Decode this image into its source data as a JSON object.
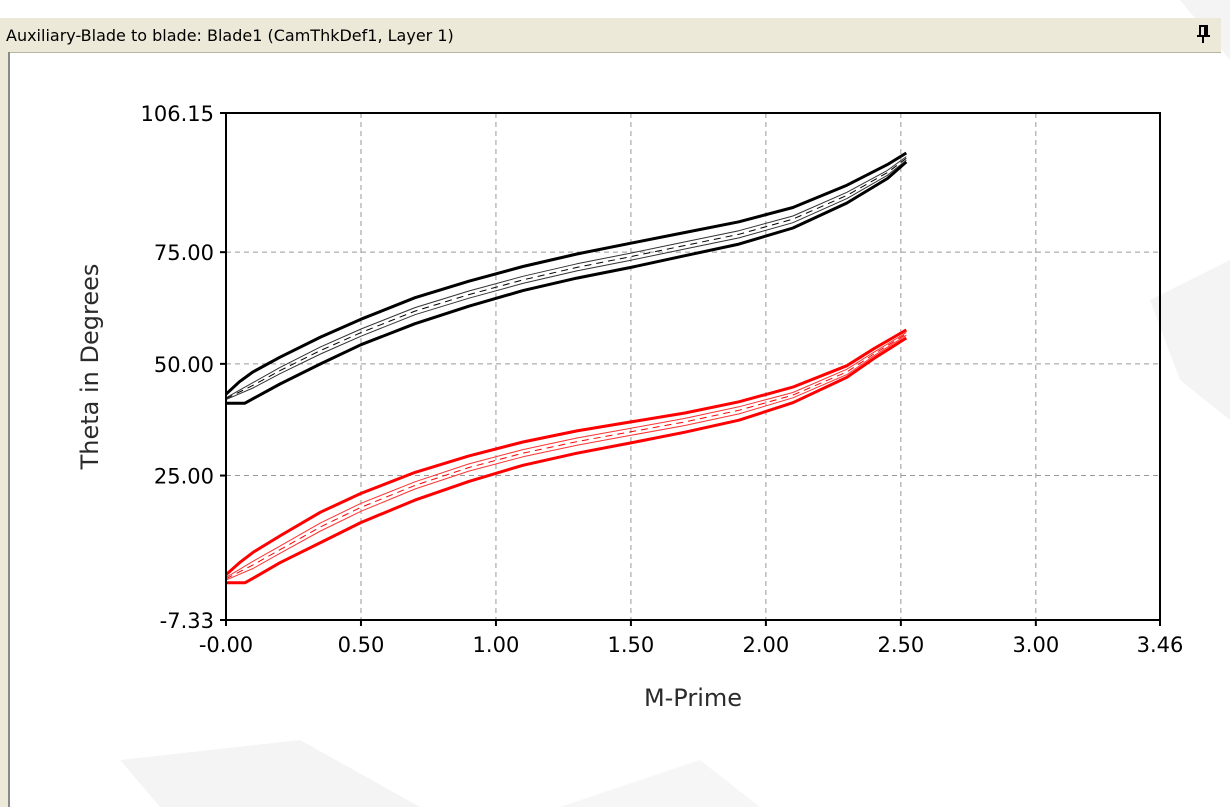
{
  "window": {
    "title": "Auxiliary-Blade to blade: Blade1 (CamThkDef1, Layer 1)",
    "pin_icon": "pin-icon"
  },
  "chart_data": {
    "type": "line",
    "title": "",
    "xlabel": "M-Prime",
    "ylabel": "Theta in Degrees",
    "xlim": [
      -0.0,
      3.46
    ],
    "ylim": [
      -7.33,
      106.15
    ],
    "x_ticks": [
      {
        "value": 0.0,
        "label": "-0.00"
      },
      {
        "value": 0.5,
        "label": "0.50"
      },
      {
        "value": 1.0,
        "label": "1.00"
      },
      {
        "value": 1.5,
        "label": "1.50"
      },
      {
        "value": 2.0,
        "label": "2.00"
      },
      {
        "value": 2.5,
        "label": "2.50"
      },
      {
        "value": 3.0,
        "label": "3.00"
      },
      {
        "value": 3.46,
        "label": "3.46"
      }
    ],
    "y_ticks": [
      {
        "value": -7.33,
        "label": "-7.33"
      },
      {
        "value": 25.0,
        "label": "25.00"
      },
      {
        "value": 50.0,
        "label": "50.00"
      },
      {
        "value": 75.0,
        "label": "75.00"
      },
      {
        "value": 106.15,
        "label": "106.15"
      }
    ],
    "grid": true,
    "series": [
      {
        "color": "#000000",
        "style": "solid",
        "width": 3,
        "x": [
          0.0,
          0.05,
          0.1,
          0.2,
          0.35,
          0.5,
          0.7,
          0.9,
          1.1,
          1.3,
          1.5,
          1.7,
          1.9,
          2.1,
          2.3,
          2.45,
          2.52
        ],
        "y": [
          43.2,
          46.0,
          48.2,
          51.5,
          56.0,
          60.0,
          64.8,
          68.5,
          71.8,
          74.6,
          77.0,
          79.4,
          81.8,
          85.0,
          90.0,
          94.6,
          97.2
        ]
      },
      {
        "color": "#000000",
        "style": "solid",
        "width": 3,
        "x": [
          0.0,
          0.07,
          0.1,
          0.2,
          0.35,
          0.5,
          0.7,
          0.9,
          1.1,
          1.3,
          1.5,
          1.7,
          1.9,
          2.1,
          2.3,
          2.45,
          2.52
        ],
        "y": [
          41.2,
          41.2,
          42.2,
          45.5,
          50.0,
          54.3,
          59.0,
          62.9,
          66.4,
          69.2,
          71.6,
          74.2,
          76.8,
          80.4,
          86.0,
          91.5,
          95.2
        ]
      },
      {
        "color": "#333333",
        "style": "solid",
        "width": 1,
        "x": [
          0.0,
          0.1,
          0.2,
          0.35,
          0.5,
          0.7,
          0.9,
          1.1,
          1.3,
          1.5,
          1.7,
          1.9,
          2.1,
          2.3,
          2.45,
          2.52
        ],
        "y": [
          42.4,
          45.8,
          49.2,
          53.8,
          57.8,
          62.6,
          66.3,
          69.6,
          72.4,
          74.8,
          77.3,
          79.8,
          83.1,
          88.4,
          93.3,
          96.4
        ]
      },
      {
        "color": "#333333",
        "style": "solid",
        "width": 1,
        "x": [
          0.0,
          0.1,
          0.2,
          0.35,
          0.5,
          0.7,
          0.9,
          1.1,
          1.3,
          1.5,
          1.7,
          1.9,
          2.1,
          2.3,
          2.45,
          2.52
        ],
        "y": [
          42.0,
          44.6,
          47.8,
          52.2,
          56.2,
          61.0,
          64.7,
          68.0,
          70.8,
          73.2,
          75.7,
          78.2,
          81.6,
          87.0,
          92.2,
          95.6
        ]
      },
      {
        "color": "#000000",
        "style": "dashed",
        "width": 1,
        "x": [
          0.0,
          0.1,
          0.2,
          0.35,
          0.5,
          0.7,
          0.9,
          1.1,
          1.3,
          1.5,
          1.7,
          1.9,
          2.1,
          2.3,
          2.45,
          2.52
        ],
        "y": [
          42.2,
          45.2,
          48.5,
          53.0,
          57.0,
          61.8,
          65.5,
          68.8,
          71.6,
          74.0,
          76.5,
          79.0,
          82.4,
          87.7,
          92.8,
          96.0
        ]
      },
      {
        "color": "#ff0000",
        "style": "solid",
        "width": 3,
        "x": [
          0.0,
          0.05,
          0.1,
          0.2,
          0.35,
          0.5,
          0.7,
          0.9,
          1.1,
          1.3,
          1.5,
          1.7,
          1.9,
          2.1,
          2.3,
          2.4,
          2.52
        ],
        "y": [
          2.8,
          5.5,
          7.8,
          11.5,
          16.8,
          21.0,
          25.7,
          29.4,
          32.5,
          35.0,
          37.0,
          39.0,
          41.5,
          44.8,
          49.6,
          53.4,
          57.6
        ]
      },
      {
        "color": "#ff0000",
        "style": "solid",
        "width": 3,
        "x": [
          0.0,
          0.07,
          0.1,
          0.2,
          0.35,
          0.5,
          0.7,
          0.9,
          1.1,
          1.3,
          1.5,
          1.7,
          1.9,
          2.1,
          2.3,
          2.4,
          2.52
        ],
        "y": [
          1.0,
          1.0,
          2.0,
          5.5,
          10.0,
          14.5,
          19.5,
          23.7,
          27.3,
          30.0,
          32.3,
          34.7,
          37.4,
          41.3,
          47.0,
          51.2,
          55.8
        ]
      },
      {
        "color": "#ff3333",
        "style": "solid",
        "width": 1,
        "x": [
          0.0,
          0.1,
          0.2,
          0.35,
          0.5,
          0.7,
          0.9,
          1.1,
          1.3,
          1.5,
          1.7,
          1.9,
          2.1,
          2.3,
          2.4,
          2.52
        ],
        "y": [
          2.2,
          5.8,
          9.2,
          14.4,
          18.8,
          23.6,
          27.6,
          30.8,
          33.4,
          35.6,
          37.8,
          40.4,
          43.6,
          48.8,
          52.6,
          57.0
        ]
      },
      {
        "color": "#ff3333",
        "style": "solid",
        "width": 1,
        "x": [
          0.0,
          0.1,
          0.2,
          0.35,
          0.5,
          0.7,
          0.9,
          1.1,
          1.3,
          1.5,
          1.7,
          1.9,
          2.1,
          2.3,
          2.4,
          2.52
        ],
        "y": [
          1.6,
          4.2,
          7.6,
          12.6,
          17.0,
          22.0,
          26.0,
          29.2,
          31.8,
          34.0,
          36.2,
          38.8,
          42.4,
          47.6,
          51.8,
          56.4
        ]
      },
      {
        "color": "#ff0000",
        "style": "dashed",
        "width": 1,
        "x": [
          0.0,
          0.1,
          0.2,
          0.35,
          0.5,
          0.7,
          0.9,
          1.1,
          1.3,
          1.5,
          1.7,
          1.9,
          2.1,
          2.3,
          2.4,
          2.52
        ],
        "y": [
          1.9,
          5.0,
          8.4,
          13.5,
          17.9,
          22.8,
          26.8,
          30.0,
          32.6,
          34.8,
          37.0,
          39.6,
          43.0,
          48.2,
          52.2,
          56.7
        ]
      }
    ]
  }
}
